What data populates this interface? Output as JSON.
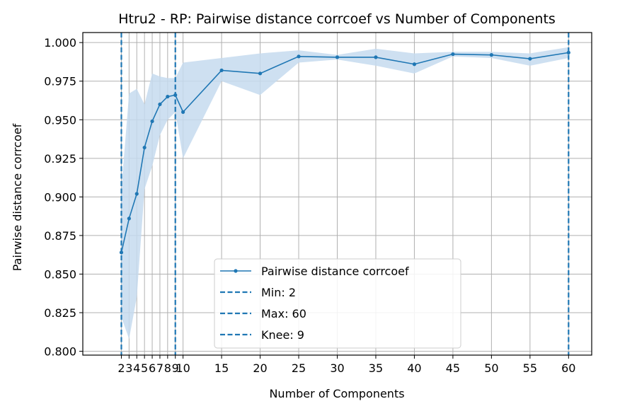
{
  "chart_data": {
    "type": "line",
    "title": "Htru2 - RP: Pairwise distance corrcoef vs Number of Components",
    "xlabel": "Number of Components",
    "ylabel": "Pairwise distance corrcoef",
    "xlim": [
      -3,
      63
    ],
    "ylim": [
      0.7975,
      1.0065
    ],
    "xticks": [
      2,
      3,
      4,
      5,
      6,
      7,
      8,
      9,
      10,
      15,
      20,
      25,
      30,
      35,
      40,
      45,
      50,
      55,
      60
    ],
    "xtick_labels": [
      "2",
      "3",
      "4",
      "5",
      "6",
      "7",
      "8",
      "9",
      "10",
      "15",
      "20",
      "25",
      "30",
      "35",
      "40",
      "45",
      "50",
      "55",
      "60"
    ],
    "yticks": [
      0.8,
      0.825,
      0.85,
      0.875,
      0.9,
      0.925,
      0.95,
      0.975,
      1.0
    ],
    "ytick_labels": [
      "0.800",
      "0.825",
      "0.850",
      "0.875",
      "0.900",
      "0.925",
      "0.950",
      "0.975",
      "1.000"
    ],
    "grid": true,
    "series": [
      {
        "name": "Pairwise distance corrcoef",
        "color": "#1f77b4",
        "x": [
          2,
          3,
          4,
          5,
          6,
          7,
          8,
          9,
          10,
          15,
          20,
          25,
          30,
          35,
          40,
          45,
          50,
          55,
          60
        ],
        "y": [
          0.864,
          0.886,
          0.902,
          0.932,
          0.949,
          0.96,
          0.965,
          0.966,
          0.955,
          0.982,
          0.98,
          0.991,
          0.9905,
          0.9905,
          0.986,
          0.9925,
          0.992,
          0.9895,
          0.9935
        ],
        "band_lower": [
          0.822,
          0.808,
          0.835,
          0.905,
          0.92,
          0.94,
          0.95,
          0.955,
          0.925,
          0.975,
          0.966,
          0.987,
          0.989,
          0.985,
          0.98,
          0.991,
          0.99,
          0.985,
          0.99
        ],
        "band_upper": [
          0.905,
          0.967,
          0.97,
          0.96,
          0.98,
          0.978,
          0.977,
          0.977,
          0.987,
          0.99,
          0.993,
          0.995,
          0.992,
          0.996,
          0.993,
          0.994,
          0.994,
          0.993,
          0.997
        ],
        "band_color": "#c6dbef"
      }
    ],
    "vlines": [
      {
        "x": 2,
        "label": "Min: 2",
        "color": "#1f77b4",
        "style": "dashed"
      },
      {
        "x": 60,
        "label": "Max: 60",
        "color": "#1f77b4",
        "style": "dashed"
      },
      {
        "x": 9,
        "label": "Knee: 9",
        "color": "#1f77b4",
        "style": "dashed"
      }
    ],
    "legend_placement": "lower-center"
  }
}
